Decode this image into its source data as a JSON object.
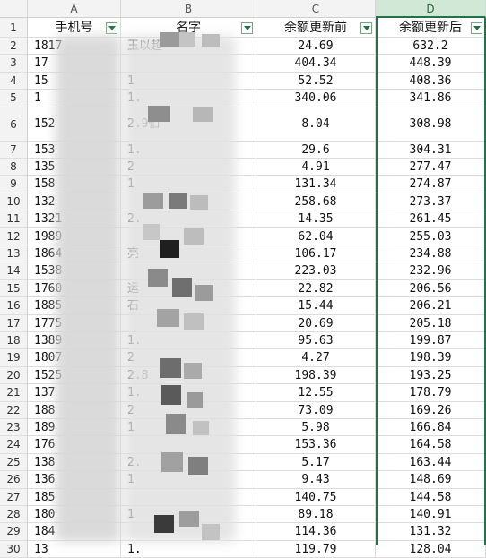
{
  "columns": [
    {
      "letter": "A",
      "header": "手机号"
    },
    {
      "letter": "B",
      "header": "名字"
    },
    {
      "letter": "C",
      "header": "余额更新前"
    },
    {
      "letter": "D",
      "header": "余额更新后"
    }
  ],
  "rows": [
    {
      "n": "2",
      "phone": "1817",
      "name": "玉以超",
      "before": "24.69",
      "after": "632.2"
    },
    {
      "n": "3",
      "phone": "17",
      "name": "",
      "before": "404.34",
      "after": "448.39"
    },
    {
      "n": "4",
      "phone": "15",
      "name": "1",
      "before": "52.52",
      "after": "408.36"
    },
    {
      "n": "5",
      "phone": "1",
      "name": "1.",
      "before": "340.06",
      "after": "341.86"
    },
    {
      "n": "6",
      "phone": "152",
      "name": "2.9佰",
      "before": "8.04",
      "after": "308.98"
    },
    {
      "n": "7",
      "phone": "153",
      "name": "1.",
      "before": "29.6",
      "after": "304.31"
    },
    {
      "n": "8",
      "phone": "135",
      "name": "2",
      "before": "4.91",
      "after": "277.47"
    },
    {
      "n": "9",
      "phone": "158",
      "name": "1",
      "before": "131.34",
      "after": "274.87"
    },
    {
      "n": "10",
      "phone": "132",
      "name": "",
      "before": "258.68",
      "after": "273.37"
    },
    {
      "n": "11",
      "phone": "1321",
      "name": "2.",
      "before": "14.35",
      "after": "261.45"
    },
    {
      "n": "12",
      "phone": "1989",
      "name": "",
      "before": "62.04",
      "after": "255.03"
    },
    {
      "n": "13",
      "phone": "1864",
      "name": "亮",
      "before": "106.17",
      "after": "234.88"
    },
    {
      "n": "14",
      "phone": "1538",
      "name": "",
      "before": "223.03",
      "after": "232.96"
    },
    {
      "n": "15",
      "phone": "1760",
      "name": "运",
      "before": "22.82",
      "after": "206.56"
    },
    {
      "n": "16",
      "phone": "1885",
      "name": "石",
      "before": "15.44",
      "after": "206.21"
    },
    {
      "n": "17",
      "phone": "1775",
      "name": "",
      "before": "20.69",
      "after": "205.18"
    },
    {
      "n": "18",
      "phone": "1389",
      "name": "1.",
      "before": "95.63",
      "after": "199.87"
    },
    {
      "n": "19",
      "phone": "1807",
      "name": "2",
      "before": "4.27",
      "after": "198.39"
    },
    {
      "n": "20",
      "phone": "1525",
      "name": "2.8",
      "before": "198.39",
      "after": "193.25"
    },
    {
      "n": "21",
      "phone": "137",
      "name": "1.",
      "before": "12.55",
      "after": "178.79"
    },
    {
      "n": "22",
      "phone": "188",
      "name": "2",
      "before": "73.09",
      "after": "169.26"
    },
    {
      "n": "23",
      "phone": "189",
      "name": "1",
      "before": "5.98",
      "after": "166.84"
    },
    {
      "n": "24",
      "phone": "176",
      "name": "",
      "before": "153.36",
      "after": "164.58"
    },
    {
      "n": "25",
      "phone": "138",
      "name": "2.",
      "before": "5.17",
      "after": "163.44"
    },
    {
      "n": "26",
      "phone": "136",
      "name": "1",
      "before": "9.43",
      "after": "148.69"
    },
    {
      "n": "27",
      "phone": "185",
      "name": "",
      "before": "140.75",
      "after": "144.58"
    },
    {
      "n": "28",
      "phone": "180",
      "name": "1",
      "before": "89.18",
      "after": "140.91"
    },
    {
      "n": "29",
      "phone": "184",
      "name": "",
      "before": "114.36",
      "after": "131.32"
    },
    {
      "n": "30",
      "phone": "13",
      "name": "1.",
      "before": "119.79",
      "after": "128.04"
    }
  ],
  "row_header_label": "1",
  "colors": {
    "accent": "#217346",
    "selected_header": "#d2e8d6",
    "grid": "#dcdcdc"
  }
}
